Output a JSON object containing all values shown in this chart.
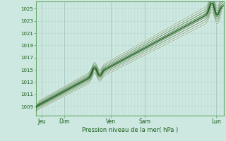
{
  "bg_color": "#cce8e0",
  "plot_bg_color": "#cce8e0",
  "grid_color_minor": "#b8d8d0",
  "grid_color_major": "#aaccc4",
  "line_color_dark": "#1a5c1a",
  "line_color_light": "#ffffff",
  "ylabel_ticks": [
    1009,
    1011,
    1013,
    1015,
    1017,
    1019,
    1021,
    1023,
    1025
  ],
  "ymin": 1007.5,
  "ymax": 1026.2,
  "xlabel": "Pression niveau de la mer( hPa )",
  "xtick_labels": [
    "Jeu",
    "Dim",
    "Ven",
    "Sam",
    "Lun"
  ],
  "xtick_positions": [
    0.03,
    0.15,
    0.4,
    0.58,
    0.96
  ],
  "label_color": "#1a5c1a",
  "spine_color": "#6aaa6a"
}
